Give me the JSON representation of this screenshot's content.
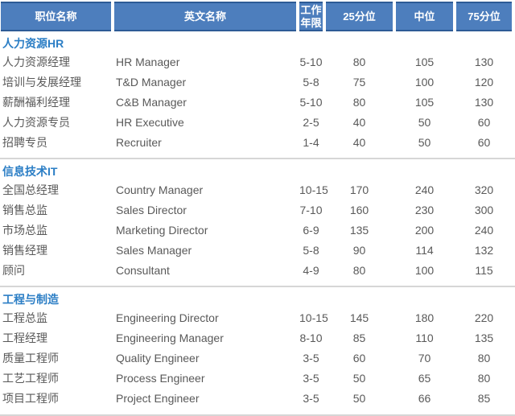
{
  "colors": {
    "header_bg": "#4d7ebd",
    "header_border": "#2d5b96",
    "header_text": "#ffffff",
    "section_title": "#2b7ec5",
    "body_text": "#595959",
    "divider": "#d6d6d6"
  },
  "table": {
    "columns": [
      "职位名称",
      "英文名称",
      "工作年限",
      "25分位",
      "中位",
      "75分位"
    ],
    "sections": [
      {
        "title": "人力资源HR",
        "rows": [
          [
            "人力资源经理",
            "HR Manager",
            "5-10",
            "80",
            "105",
            "130"
          ],
          [
            "培训与发展经理",
            "T&D Manager",
            "5-8",
            "75",
            "100",
            "120"
          ],
          [
            "薪酬福利经理",
            "C&B Manager",
            "5-10",
            "80",
            "105",
            "130"
          ],
          [
            "人力资源专员",
            "HR Executive",
            "2-5",
            "40",
            "50",
            "60"
          ],
          [
            "招聘专员",
            "Recruiter",
            "1-4",
            "40",
            "50",
            "60"
          ]
        ]
      },
      {
        "title": "信息技术IT",
        "rows": [
          [
            "全国总经理",
            "Country Manager",
            "10-15",
            "170",
            "240",
            "320"
          ],
          [
            "销售总监",
            "Sales Director",
            "7-10",
            "160",
            "230",
            "300"
          ],
          [
            "市场总监",
            "Marketing Director",
            "6-9",
            "135",
            "200",
            "240"
          ],
          [
            "销售经理",
            "Sales Manager",
            "5-8",
            "90",
            "114",
            "132"
          ],
          [
            "顾问",
            "Consultant",
            "4-9",
            "80",
            "100",
            "115"
          ]
        ]
      },
      {
        "title": "工程与制造",
        "rows": [
          [
            "工程总监",
            "Engineering Director",
            "10-15",
            "145",
            "180",
            "220"
          ],
          [
            "工程经理",
            "Engineering Manager",
            "8-10",
            "85",
            "110",
            "135"
          ],
          [
            "质量工程师",
            "Quality Engineer",
            "3-5",
            "60",
            "70",
            "80"
          ],
          [
            "工艺工程师",
            "Process Engineer",
            "3-5",
            "50",
            "65",
            "80"
          ],
          [
            "项目工程师",
            "Project Engineer",
            "3-5",
            "50",
            "66",
            "85"
          ]
        ]
      }
    ]
  }
}
